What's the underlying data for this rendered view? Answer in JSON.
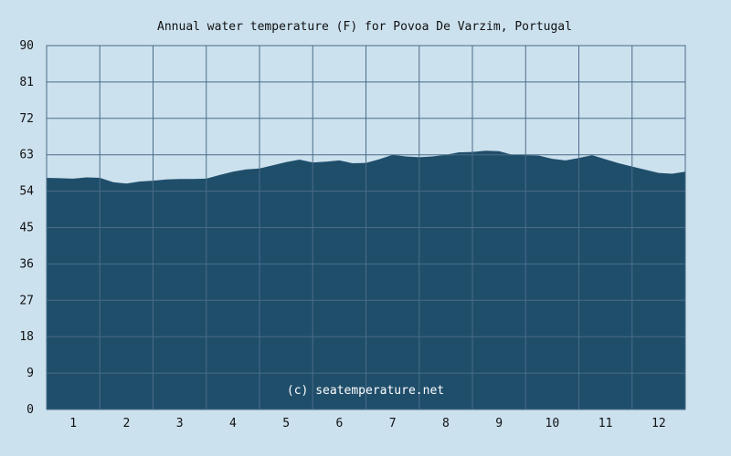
{
  "chart_data": {
    "type": "area",
    "title": "Annual water temperature (F) for Povoa De Varzim, Portugal",
    "xlabel": "",
    "ylabel": "",
    "x_tick_labels": [
      "1",
      "2",
      "3",
      "4",
      "5",
      "6",
      "7",
      "8",
      "9",
      "10",
      "11",
      "12"
    ],
    "y_tick_labels": [
      "0",
      "9",
      "18",
      "27",
      "36",
      "45",
      "54",
      "63",
      "72",
      "81",
      "90"
    ],
    "xlim": [
      0.5,
      12.5
    ],
    "ylim": [
      0,
      90
    ],
    "grid": true,
    "legend": "none",
    "series": [
      {
        "x": [
          0.5,
          0.75,
          1.0,
          1.25,
          1.5,
          1.75,
          2.0,
          2.25,
          2.5,
          2.75,
          3.0,
          3.25,
          3.5,
          3.75,
          4.0,
          4.25,
          4.5,
          4.75,
          5.0,
          5.25,
          5.5,
          5.75,
          6.0,
          6.25,
          6.5,
          6.75,
          7.0,
          7.25,
          7.5,
          7.75,
          8.0,
          8.25,
          8.5,
          8.75,
          9.0,
          9.25,
          9.5,
          9.75,
          10.0,
          10.25,
          10.5,
          10.75,
          11.0,
          11.25,
          11.5,
          11.75,
          12.0,
          12.25,
          12.5
        ],
        "values": [
          57.3,
          57.2,
          57.1,
          57.4,
          57.3,
          56.2,
          55.9,
          56.4,
          56.6,
          56.9,
          57.0,
          57.0,
          57.1,
          58.0,
          58.8,
          59.4,
          59.6,
          60.4,
          61.2,
          61.8,
          61.1,
          61.3,
          61.6,
          60.9,
          61.0,
          61.9,
          63.0,
          62.6,
          62.4,
          62.6,
          63.0,
          63.6,
          63.7,
          64.0,
          63.9,
          63.0,
          62.9,
          62.8,
          62.0,
          61.6,
          62.2,
          62.9,
          61.9,
          60.9,
          60.1,
          59.3,
          58.5,
          58.3,
          58.8
        ]
      }
    ],
    "fill_color": "#1f4e6b",
    "grid_color": "#4a6c87",
    "background_color": "#cce1ee",
    "watermark": "(c) seatemperature.net"
  }
}
